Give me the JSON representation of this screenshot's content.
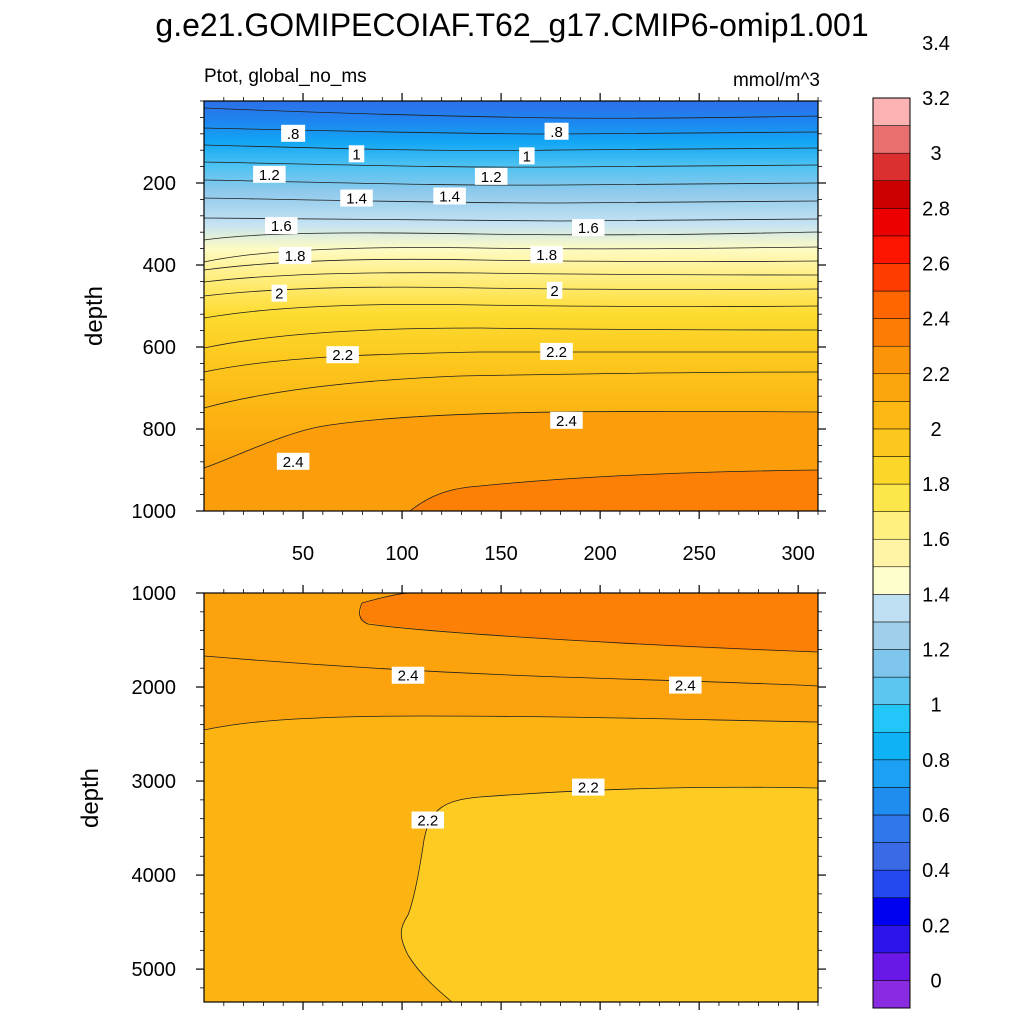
{
  "title": "g.e21.GOMIPECOIAF.T62_g17.CMIP6-omip1.001",
  "subtitle_left": "Ptot, global_no_ms",
  "subtitle_right": "mmol/m^3",
  "chart_data": {
    "type": "contour",
    "variable": "Ptot",
    "region": "global_no_ms",
    "units": "mmol/m^3",
    "xlabel": "",
    "ylabel": "depth",
    "x_ticks": [
      50,
      100,
      150,
      200,
      250,
      300
    ],
    "colorbar": {
      "levels": [
        0,
        0.2,
        0.4,
        0.6,
        0.8,
        1,
        1.2,
        1.4,
        1.6,
        1.8,
        2,
        2.2,
        2.4,
        2.6,
        2.8,
        3,
        3.2,
        3.4
      ],
      "colors": [
        "#8a2be2",
        "#6a18e8",
        "#2d14ea",
        "#0000f0",
        "#2449f0",
        "#3a6ae6",
        "#2e78ec",
        "#1f8cf0",
        "#1ca0f4",
        "#0fb2f4",
        "#22c6f8",
        "#5cc6f0",
        "#7ec6ee",
        "#a0cfeb",
        "#bfe0f2",
        "#fefdcc",
        "#fff4a6",
        "#fff080",
        "#fde64a",
        "#fdd62a",
        "#fdc81e",
        "#fdb814",
        "#fca60e",
        "#fc940a",
        "#fc7c06",
        "#ff6600",
        "#ff3c00",
        "#ff1400",
        "#ec0000",
        "#cc0000",
        "#dc3030",
        "#e97070",
        "#fcb2b2"
      ],
      "tick_labels": [
        "0",
        "0.2",
        "0.4",
        "0.6",
        "0.8",
        "1",
        "1.2",
        "1.4",
        "1.6",
        "1.8",
        "2",
        "2.2",
        "2.4",
        "2.6",
        "2.8",
        "3",
        "3.2",
        "3.4"
      ]
    },
    "panels": [
      {
        "name": "upper",
        "depth_range": [
          0,
          1000
        ],
        "y_ticks": [
          200,
          400,
          600,
          800,
          1000
        ],
        "x_range": [
          0,
          310
        ],
        "contour_labels": [
          {
            "text": ".8",
            "x": 45,
            "depth": 80
          },
          {
            "text": ".8",
            "x": 178,
            "depth": 75
          },
          {
            "text": "1",
            "x": 77,
            "depth": 130
          },
          {
            "text": "1",
            "x": 163,
            "depth": 135
          },
          {
            "text": "1.2",
            "x": 33,
            "depth": 180
          },
          {
            "text": "1.2",
            "x": 145,
            "depth": 185
          },
          {
            "text": "1.4",
            "x": 77,
            "depth": 238
          },
          {
            "text": "1.4",
            "x": 124,
            "depth": 233
          },
          {
            "text": "1.6",
            "x": 39,
            "depth": 305
          },
          {
            "text": "1.6",
            "x": 194,
            "depth": 310
          },
          {
            "text": "1.8",
            "x": 46,
            "depth": 378
          },
          {
            "text": "1.8",
            "x": 173,
            "depth": 376
          },
          {
            "text": "2",
            "x": 38,
            "depth": 470
          },
          {
            "text": "2",
            "x": 177,
            "depth": 463
          },
          {
            "text": "2.2",
            "x": 70,
            "depth": 620
          },
          {
            "text": "2.2",
            "x": 178,
            "depth": 612
          },
          {
            "text": "2.4",
            "x": 45,
            "depth": 880
          },
          {
            "text": "2.4",
            "x": 183,
            "depth": 780
          }
        ]
      },
      {
        "name": "lower",
        "depth_range": [
          1000,
          5350
        ],
        "y_ticks": [
          1000,
          2000,
          3000,
          4000,
          5000
        ],
        "x_range": [
          0,
          310
        ],
        "contour_labels": [
          {
            "text": "2.4",
            "x": 103,
            "depth": 1880
          },
          {
            "text": "2.4",
            "x": 243,
            "depth": 1985
          },
          {
            "text": "2.2",
            "x": 194,
            "depth": 3070
          },
          {
            "text": "2.2",
            "x": 113,
            "depth": 3420
          }
        ]
      }
    ]
  }
}
